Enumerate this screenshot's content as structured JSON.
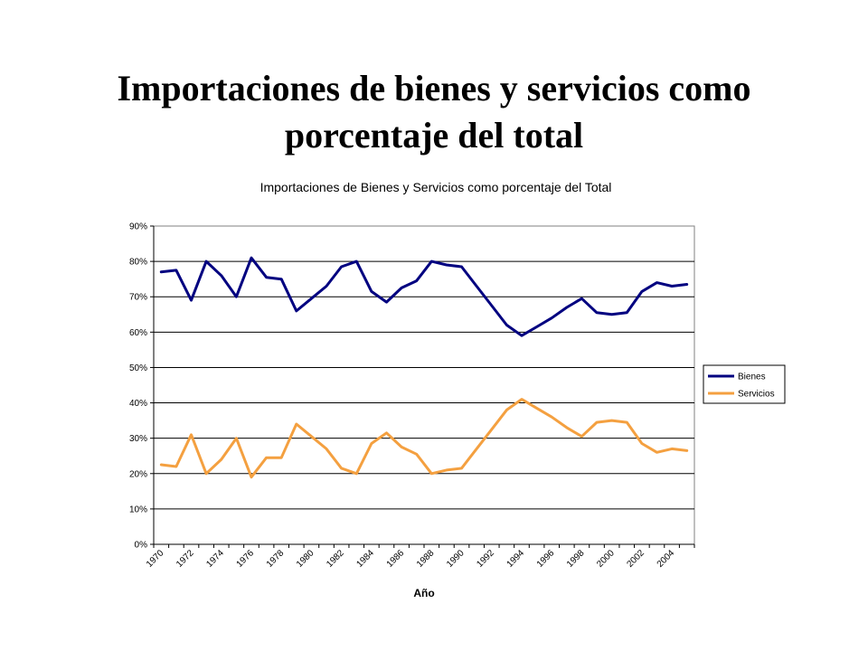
{
  "slide": {
    "title_line1": "Importaciones de bienes y servicios como",
    "title_line2": "porcentaje del total"
  },
  "chart_data": {
    "type": "line",
    "title": "Importaciones de Bienes y Servicios como porcentaje del Total",
    "xlabel": "Año",
    "ylabel": "",
    "ylim": [
      0,
      90
    ],
    "y_unit": "%",
    "y_ticks": [
      "0%",
      "10%",
      "20%",
      "30%",
      "40%",
      "50%",
      "60%",
      "70%",
      "80%",
      "90%"
    ],
    "x_tick_labels": [
      "1970",
      "1972",
      "1974",
      "1976",
      "1978",
      "1980",
      "1982",
      "1984",
      "1986",
      "1988",
      "1990",
      "1992",
      "1994",
      "1996",
      "1998",
      "2000",
      "2002",
      "2004"
    ],
    "x": [
      1970,
      1971,
      1972,
      1973,
      1974,
      1975,
      1976,
      1977,
      1978,
      1979,
      1980,
      1981,
      1982,
      1983,
      1984,
      1985,
      1986,
      1987,
      1988,
      1989,
      1990,
      1991,
      1992,
      1993,
      1994,
      1995,
      1996,
      1997,
      1998,
      1999,
      2000,
      2001,
      2002,
      2003,
      2004,
      2005
    ],
    "grid": true,
    "legend_position": "right",
    "series": [
      {
        "name": "Bienes",
        "color": "#000080",
        "values": [
          77,
          77.5,
          69,
          80,
          76,
          70,
          81,
          75.5,
          75,
          66,
          69.5,
          73,
          78.5,
          80,
          71.5,
          68.5,
          72.5,
          74.5,
          80,
          79,
          78.5,
          73,
          67.5,
          62,
          59,
          61.5,
          64,
          67,
          69.5,
          65.5,
          65,
          65.5,
          71.5,
          74,
          73,
          73.5
        ]
      },
      {
        "name": "Servicios",
        "color": "#F4A040",
        "values": [
          22.5,
          22,
          31,
          20,
          24,
          30,
          19,
          24.5,
          24.5,
          34,
          30.5,
          27,
          21.5,
          20,
          28.5,
          31.5,
          27.5,
          25.5,
          20,
          21,
          21.5,
          27,
          32.5,
          38,
          41,
          38.5,
          36,
          33,
          30.5,
          34.5,
          35,
          34.5,
          28.5,
          26,
          27,
          26.5
        ]
      }
    ]
  }
}
